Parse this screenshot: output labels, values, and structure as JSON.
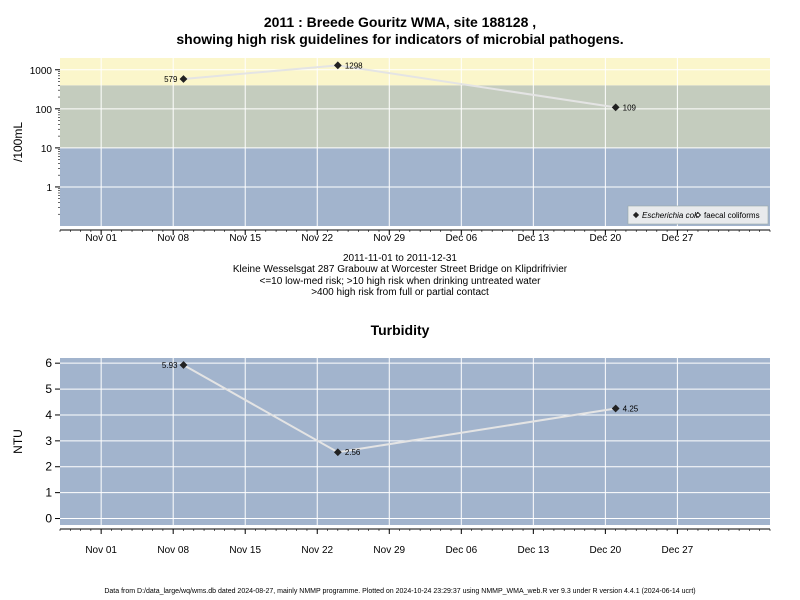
{
  "page": {
    "title_line1": "2011 : Breede Gouritz WMA, site 188128 ,",
    "title_line2": "showing high risk guidelines for indicators of microbial pathogens.",
    "caption_lines": [
      "2011-11-01 to 2011-12-31",
      "Kleine Wesselsgat 287 Grabouw at Worcester Street Bridge on Klipdrifrivier",
      "<=10 low-med risk; >10 high risk when drinking untreated water",
      ">400 high risk from full or partial contact"
    ],
    "footer": "Data from D:/data_large/wq/wms.db dated 2024-08-27, mainly NMMP programme. Plotted on 2024-10-24 23:29:37 using NMMP_WMA_web.R ver 9.3 under R version 4.4.1 (2024-06-14 ucrt)"
  },
  "chart_data": [
    {
      "type": "line",
      "title": "",
      "ylabel": "/100mL",
      "xlabel": "",
      "y_scale": "log",
      "ylim": [
        0.1,
        2000
      ],
      "y_ticks": [
        1,
        10,
        100,
        1000
      ],
      "y_tick_labels": [
        "1",
        "10",
        "100",
        "1000"
      ],
      "x_range": [
        "2011-10-28",
        "2012-01-05"
      ],
      "x_ticks": [
        "2011-11-01",
        "2011-11-08",
        "2011-11-15",
        "2011-11-22",
        "2011-11-29",
        "2011-12-06",
        "2011-12-13",
        "2011-12-20",
        "2011-12-27"
      ],
      "x_tick_labels": [
        "Nov 01",
        "Nov 08",
        "Nov 15",
        "Nov 22",
        "Nov 29",
        "Dec 06",
        "Dec 13",
        "Dec 20",
        "Dec 27"
      ],
      "risk_bands": [
        {
          "from": 0.1,
          "to": 10,
          "color": "#a2b4cd"
        },
        {
          "from": 10,
          "to": 400,
          "color": "#c4ccbe"
        },
        {
          "from": 400,
          "to": 2000,
          "color": "#fbf6cb"
        }
      ],
      "grid": true,
      "legend_position": "bottom-right",
      "series": [
        {
          "name": "Escherichia coli",
          "marker": "filled-diamond",
          "x": [
            "2011-11-09",
            "2011-11-24",
            "2011-12-21"
          ],
          "y": [
            579,
            1298,
            109
          ],
          "labels": [
            "579",
            "1298",
            "109"
          ]
        },
        {
          "name": "faecal coliforms",
          "marker": "open-diamond",
          "x": [],
          "y": [],
          "labels": []
        }
      ]
    },
    {
      "type": "line",
      "title": "Turbidity",
      "ylabel": "NTU",
      "xlabel": "",
      "y_scale": "linear",
      "ylim": [
        -0.25,
        6.2
      ],
      "y_ticks": [
        0,
        1,
        2,
        3,
        4,
        5,
        6
      ],
      "y_tick_labels": [
        "0",
        "1",
        "2",
        "3",
        "4",
        "5",
        "6"
      ],
      "x_range": [
        "2011-10-28",
        "2012-01-05"
      ],
      "x_ticks": [
        "2011-11-01",
        "2011-11-08",
        "2011-11-15",
        "2011-11-22",
        "2011-11-29",
        "2011-12-06",
        "2011-12-13",
        "2011-12-20",
        "2011-12-27"
      ],
      "x_tick_labels": [
        "Nov 01",
        "Nov 08",
        "Nov 15",
        "Nov 22",
        "Nov 29",
        "Dec 06",
        "Dec 13",
        "Dec 20",
        "Dec 27"
      ],
      "background": "#a2b4cd",
      "grid": true,
      "series": [
        {
          "name": "",
          "marker": "filled-diamond",
          "x": [
            "2011-11-09",
            "2011-11-24",
            "2011-12-21"
          ],
          "y": [
            5.93,
            2.56,
            4.25
          ],
          "labels": [
            "5.93",
            "2.56",
            "4.25"
          ]
        }
      ]
    }
  ]
}
